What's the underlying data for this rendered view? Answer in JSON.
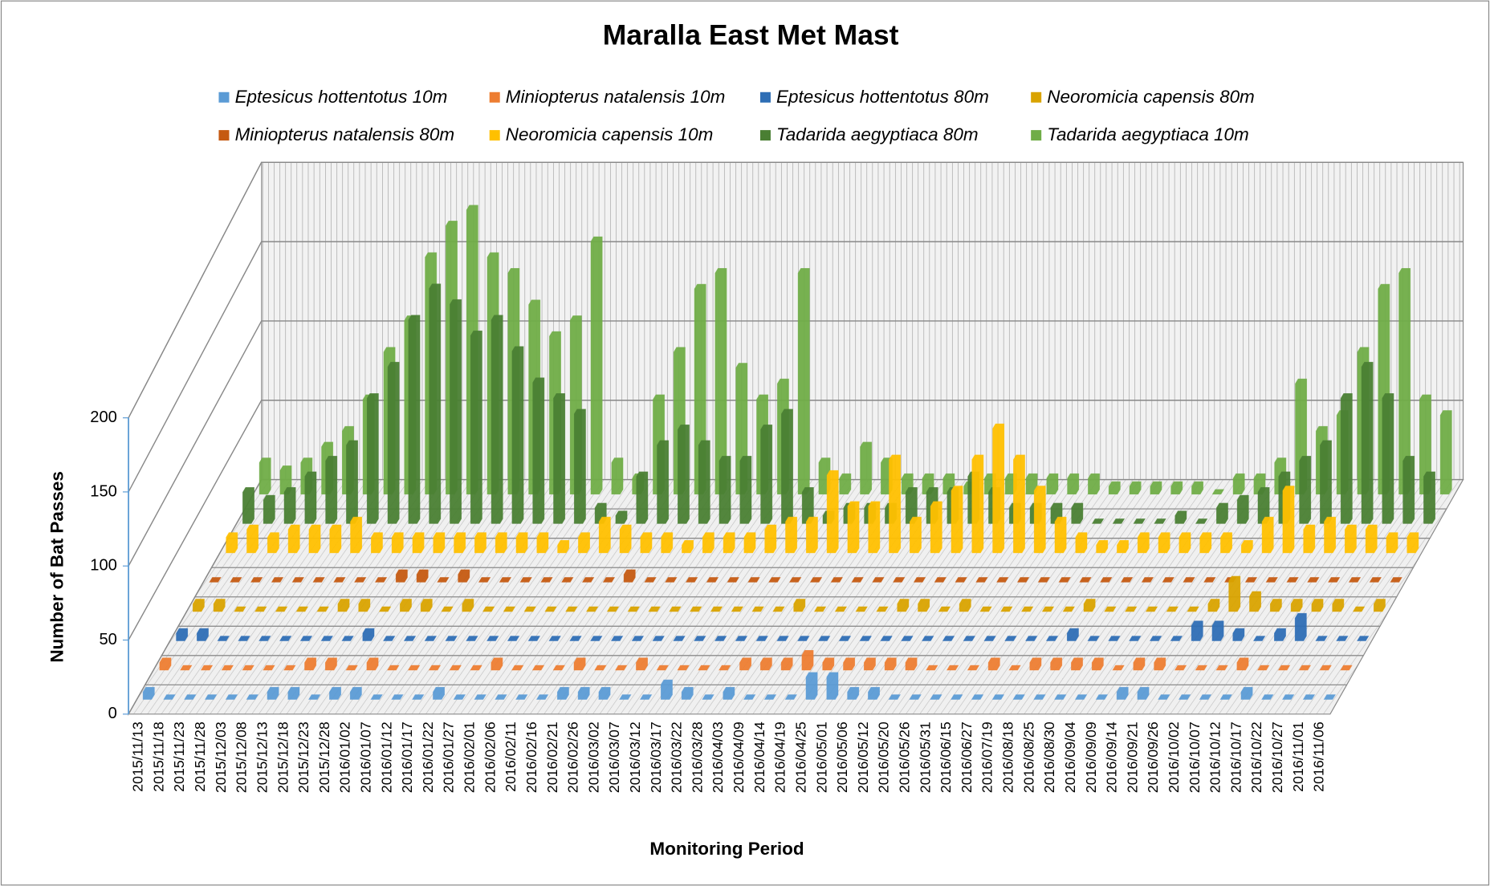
{
  "chart_data": {
    "type": "bar3d",
    "title": "Maralla East Met Mast",
    "x_label": "Monitoring Period",
    "y_label": "Number of Bat Passes",
    "ylim": [
      0,
      200
    ],
    "yticks": [
      0,
      50,
      100,
      150,
      200
    ],
    "grid": true,
    "legend": "top",
    "categories": [
      "2015/11/13",
      "2015/11/18",
      "2015/11/23",
      "2015/11/28",
      "2015/12/03",
      "2015/12/08",
      "2015/12/13",
      "2015/12/18",
      "2015/12/23",
      "2015/12/28",
      "2016/01/02",
      "2016/01/07",
      "2016/01/12",
      "2016/01/17",
      "2016/01/22",
      "2016/01/27",
      "2016/02/01",
      "2016/02/06",
      "2016/02/11",
      "2016/02/16",
      "2016/02/21",
      "2016/02/26",
      "2016/03/02",
      "2016/03/07",
      "2016/03/12",
      "2016/03/17",
      "2016/03/22",
      "2016/03/28",
      "2016/04/03",
      "2016/04/09",
      "2016/04/14",
      "2016/04/19",
      "2016/04/25",
      "2016/05/01",
      "2016/05/06",
      "2016/05/12",
      "2016/05/20",
      "2016/05/26",
      "2016/05/31",
      "2016/06/15",
      "2016/06/27",
      "2016/07/19",
      "2016/08/18",
      "2016/08/25",
      "2016/08/30",
      "2016/09/04",
      "2016/09/09",
      "2016/09/14",
      "2016/09/21",
      "2016/09/26",
      "2016/10/02",
      "2016/10/07",
      "2016/10/12",
      "2016/10/17",
      "2016/10/22",
      "2016/10/27",
      "2016/11/01",
      "2016/11/06"
    ],
    "series": [
      {
        "name": "Eptesicus hottentotus 10m",
        "color": "#5b9bd5",
        "values": [
          5,
          0,
          0,
          0,
          0,
          0,
          5,
          5,
          0,
          5,
          5,
          0,
          0,
          0,
          5,
          0,
          0,
          0,
          0,
          0,
          5,
          5,
          5,
          0,
          0,
          10,
          5,
          0,
          5,
          0,
          0,
          0,
          15,
          15,
          5,
          5,
          0,
          0,
          0,
          0,
          0,
          0,
          0,
          0,
          0,
          0,
          0,
          5,
          5,
          0,
          0,
          0,
          0,
          5,
          0,
          0,
          0,
          0
        ]
      },
      {
        "name": "Miniopterus natalensis 10m",
        "color": "#ed7d31",
        "values": [
          5,
          0,
          0,
          0,
          0,
          0,
          0,
          5,
          5,
          0,
          5,
          0,
          0,
          0,
          0,
          0,
          5,
          0,
          0,
          0,
          5,
          0,
          0,
          5,
          0,
          0,
          0,
          0,
          5,
          5,
          5,
          10,
          5,
          5,
          5,
          5,
          5,
          0,
          0,
          0,
          5,
          0,
          5,
          5,
          5,
          5,
          0,
          5,
          5,
          0,
          0,
          0,
          5,
          0,
          0,
          0,
          0,
          0
        ]
      },
      {
        "name": "Eptesicus hottentotus 80m",
        "color": "#2e6eb5",
        "values": [
          5,
          5,
          0,
          0,
          0,
          0,
          0,
          0,
          0,
          5,
          0,
          0,
          0,
          0,
          0,
          0,
          0,
          0,
          0,
          0,
          0,
          0,
          0,
          0,
          0,
          0,
          0,
          0,
          0,
          0,
          0,
          0,
          0,
          0,
          0,
          0,
          0,
          0,
          0,
          0,
          0,
          0,
          0,
          5,
          0,
          0,
          0,
          0,
          0,
          10,
          10,
          5,
          0,
          5,
          15,
          0,
          0,
          0
        ]
      },
      {
        "name": "Neoromicia capensis 80m",
        "color": "#d9a300",
        "values": [
          5,
          5,
          0,
          0,
          0,
          0,
          0,
          5,
          5,
          0,
          5,
          5,
          0,
          5,
          0,
          0,
          0,
          0,
          0,
          0,
          0,
          0,
          0,
          0,
          0,
          0,
          0,
          0,
          0,
          5,
          0,
          0,
          0,
          0,
          5,
          5,
          0,
          5,
          0,
          0,
          0,
          0,
          0,
          5,
          0,
          0,
          0,
          0,
          0,
          5,
          20,
          10,
          5,
          5,
          5,
          5,
          0,
          5
        ]
      },
      {
        "name": "Miniopterus natalensis 80m",
        "color": "#c55a11",
        "values": [
          0,
          0,
          0,
          0,
          0,
          0,
          0,
          0,
          0,
          5,
          5,
          0,
          5,
          0,
          0,
          0,
          0,
          0,
          0,
          0,
          5,
          0,
          0,
          0,
          0,
          0,
          0,
          0,
          0,
          0,
          0,
          0,
          0,
          0,
          0,
          0,
          0,
          0,
          0,
          0,
          0,
          0,
          0,
          0,
          0,
          0,
          0,
          0,
          0,
          0,
          0,
          0,
          0,
          0,
          0,
          0,
          0,
          0
        ]
      },
      {
        "name": "Neoromicia capensis 10m",
        "color": "#ffc000",
        "values": [
          10,
          15,
          10,
          15,
          15,
          15,
          20,
          10,
          10,
          10,
          10,
          10,
          10,
          10,
          10,
          10,
          5,
          10,
          20,
          15,
          10,
          10,
          5,
          10,
          10,
          10,
          15,
          20,
          20,
          50,
          30,
          30,
          60,
          20,
          30,
          40,
          60,
          80,
          60,
          40,
          20,
          10,
          5,
          5,
          10,
          10,
          10,
          10,
          10,
          5,
          20,
          40,
          15,
          20,
          15,
          15,
          10,
          10
        ]
      },
      {
        "name": "Tadarida aegyptiaca 80m",
        "color": "#4a7f33",
        "values": [
          20,
          15,
          20,
          30,
          40,
          50,
          80,
          100,
          130,
          150,
          140,
          120,
          130,
          110,
          90,
          80,
          70,
          10,
          5,
          30,
          50,
          60,
          50,
          40,
          40,
          60,
          70,
          20,
          5,
          10,
          10,
          10,
          20,
          20,
          20,
          30,
          20,
          10,
          10,
          10,
          10,
          0,
          0,
          0,
          0,
          5,
          0,
          10,
          15,
          20,
          30,
          40,
          50,
          80,
          100,
          80,
          40,
          30
        ]
      },
      {
        "name": "Tadarida aegyptiaca 10m",
        "color": "#70ad47",
        "values": [
          20,
          15,
          20,
          30,
          40,
          60,
          90,
          110,
          150,
          170,
          180,
          150,
          140,
          120,
          100,
          110,
          160,
          20,
          10,
          60,
          90,
          130,
          140,
          80,
          60,
          70,
          140,
          20,
          10,
          30,
          20,
          10,
          10,
          10,
          5,
          10,
          10,
          10,
          10,
          10,
          10,
          5,
          5,
          5,
          5,
          5,
          0,
          10,
          10,
          20,
          70,
          40,
          50,
          90,
          130,
          140,
          60,
          50
        ]
      }
    ]
  }
}
